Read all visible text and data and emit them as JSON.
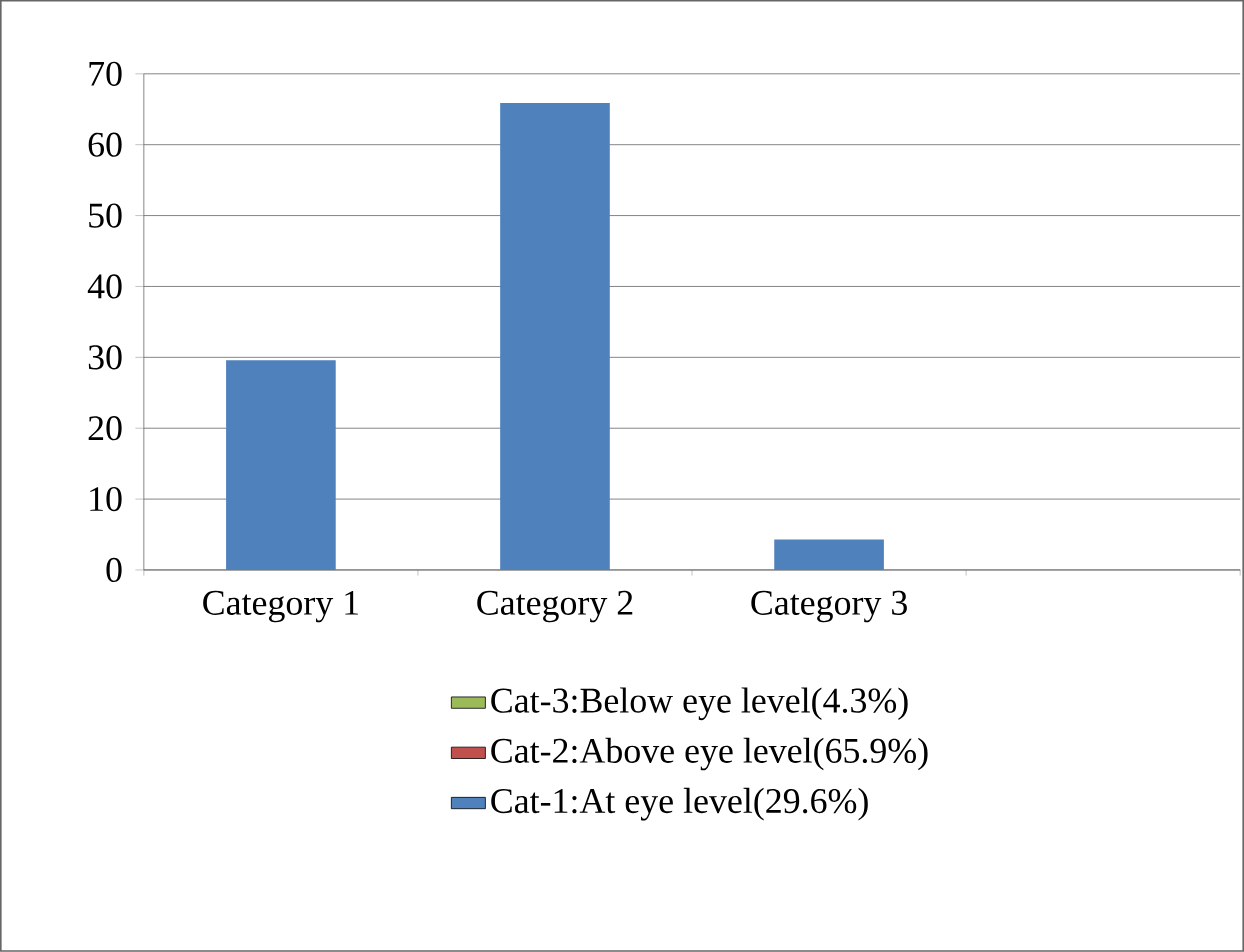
{
  "chart_data": {
    "type": "bar",
    "categories": [
      "Category 1",
      "Category 2",
      "Category 3",
      null
    ],
    "series": [
      {
        "name": "Cat-1:At eye level(29.6%)",
        "color": "#4f81bd",
        "values": [
          29.6,
          65.9,
          4.3,
          null
        ]
      },
      {
        "name": "Cat-2:Above eye level(65.9%)",
        "color": "#c0504d",
        "values": [
          null,
          null,
          null,
          null
        ]
      },
      {
        "name": "Cat-3:Below eye level(4.3%)",
        "color": "#9bbb59",
        "values": [
          null,
          null,
          null,
          null
        ]
      }
    ],
    "ylim": [
      0,
      70
    ],
    "yticks": [
      0,
      10,
      20,
      30,
      40,
      50,
      60,
      70
    ],
    "grid": "y",
    "legend": "bottom"
  }
}
